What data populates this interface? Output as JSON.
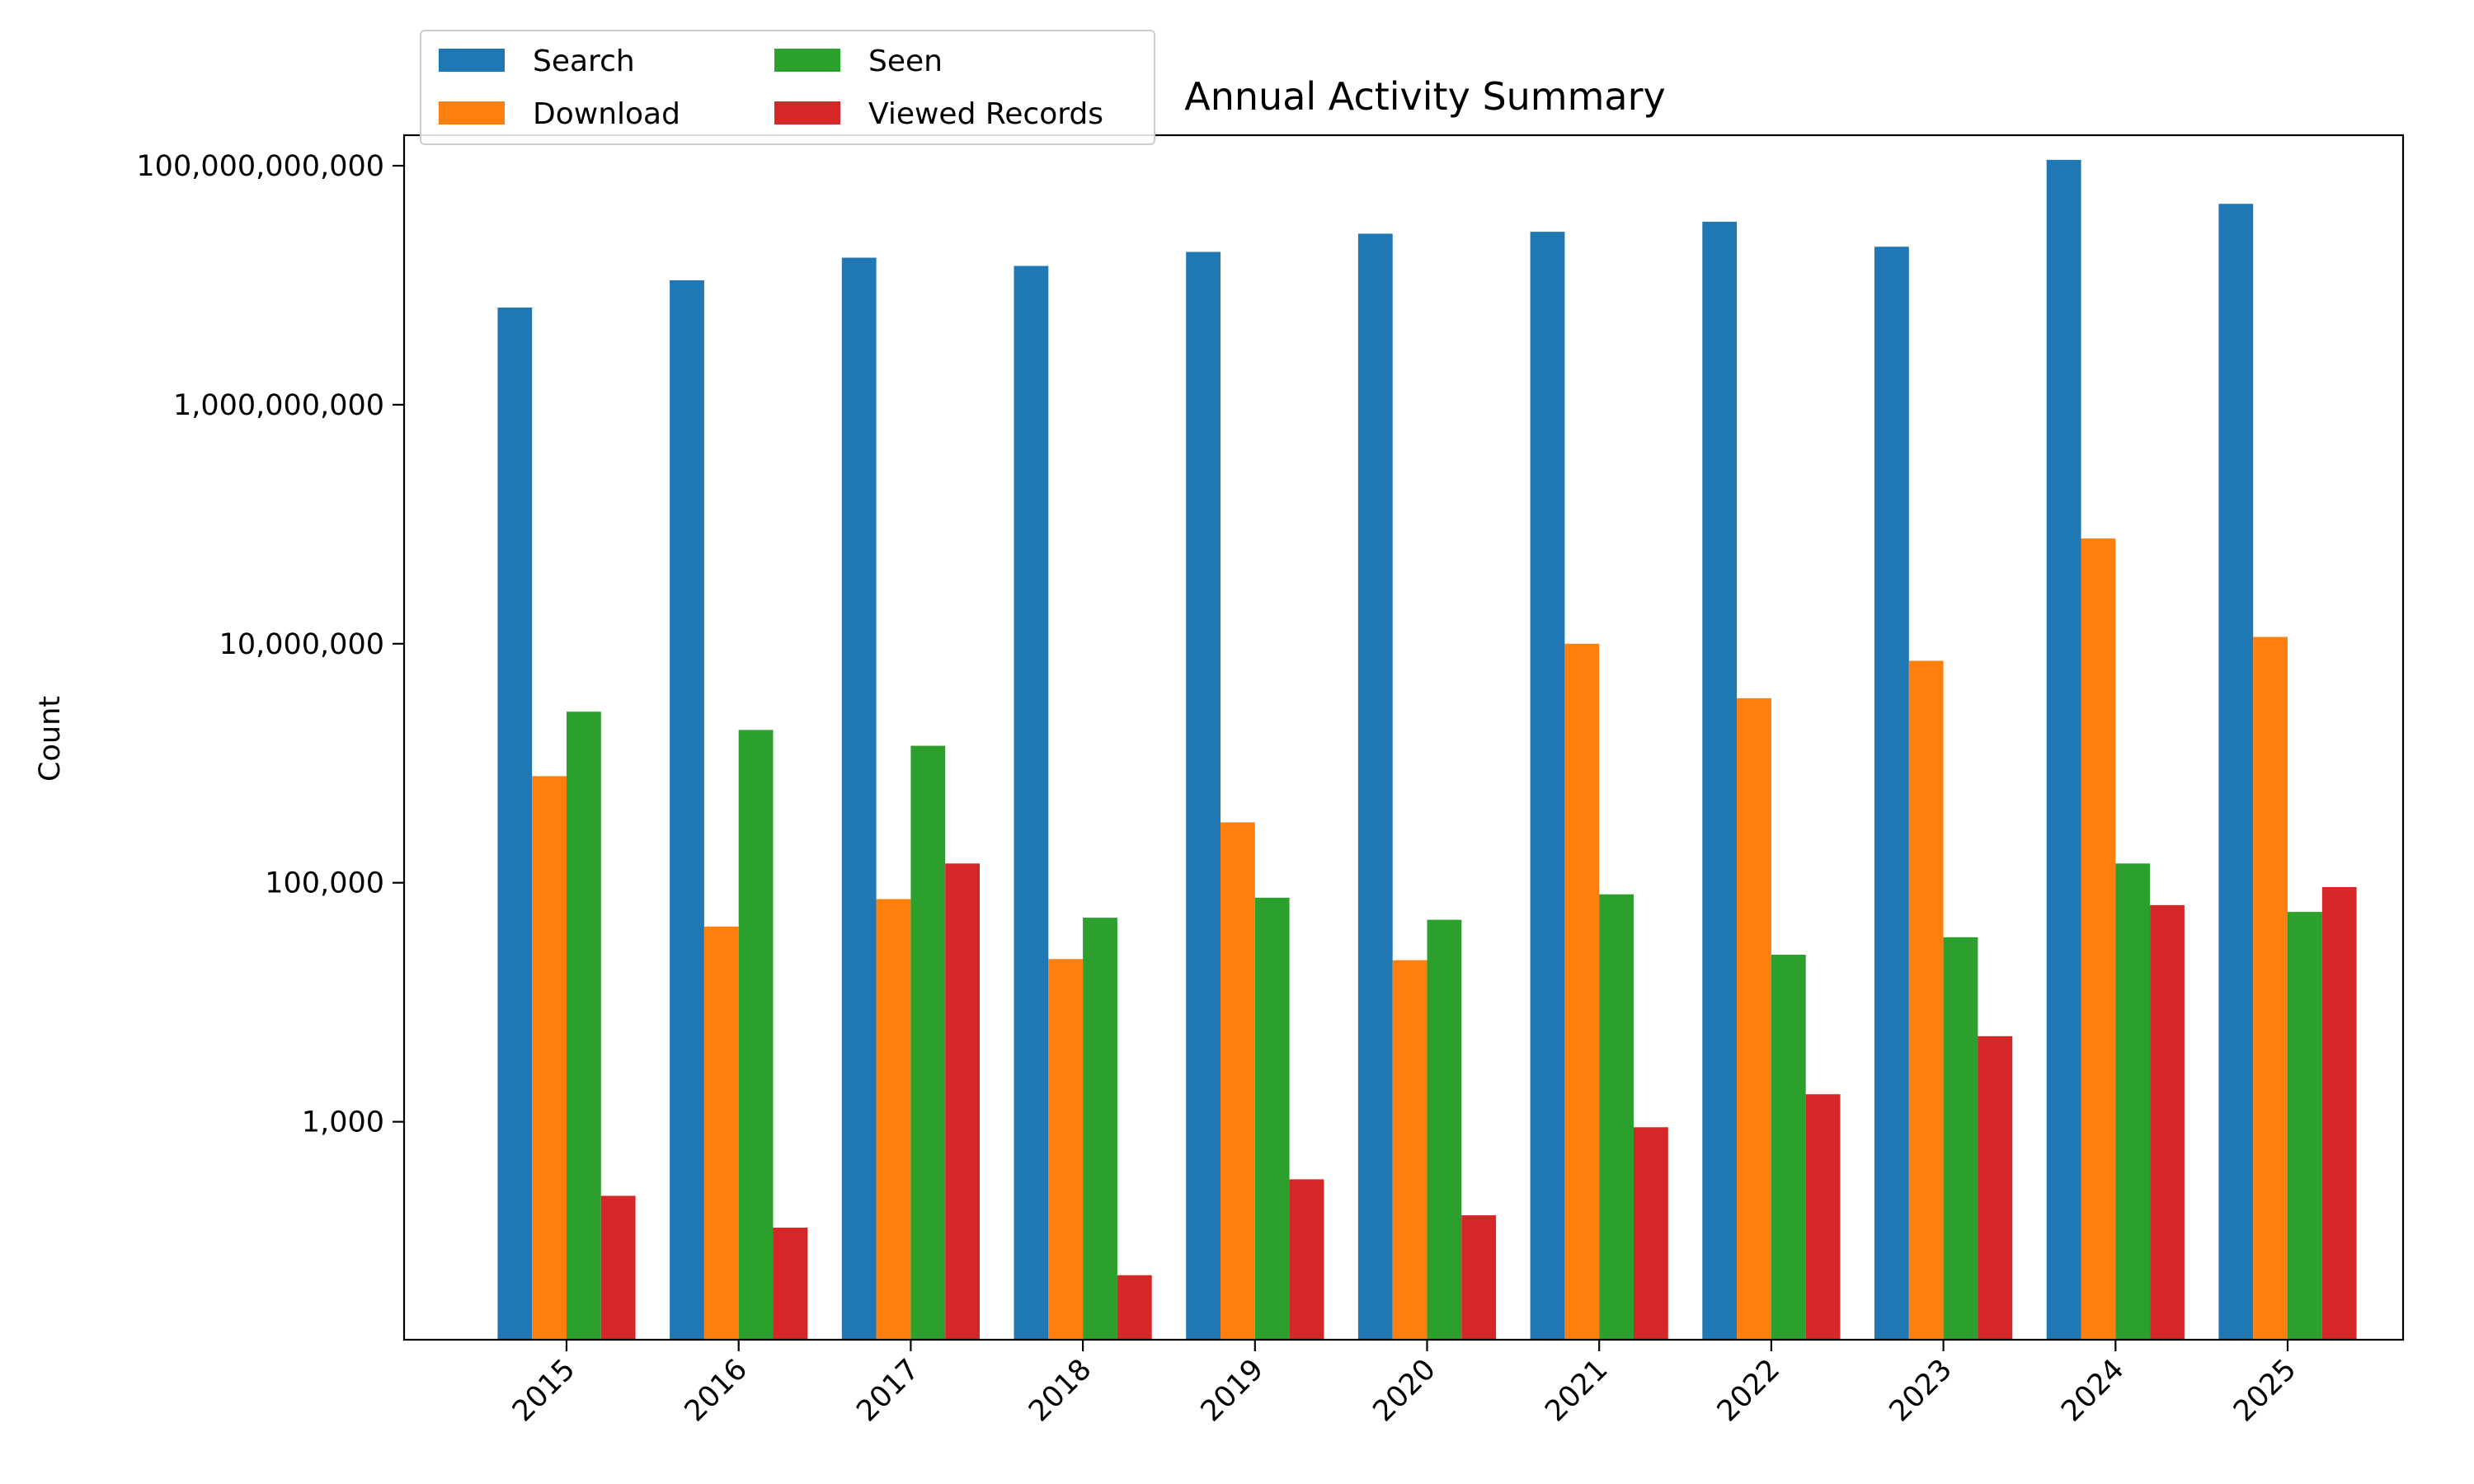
{
  "chart_data": {
    "type": "bar",
    "title": "Annual Activity Summary",
    "xlabel": "",
    "ylabel": "Count",
    "y_scale": "log",
    "ylim": [
      15,
      180000000000
    ],
    "y_ticks": [
      {
        "value": 1000,
        "label": "1,000"
      },
      {
        "value": 100000,
        "label": "100,000"
      },
      {
        "value": 10000000,
        "label": "10,000,000"
      },
      {
        "value": 1000000000,
        "label": "1,000,000,000"
      },
      {
        "value": 100000000000,
        "label": "100,000,000,000"
      }
    ],
    "categories": [
      "2015",
      "2016",
      "2017",
      "2018",
      "2019",
      "2020",
      "2021",
      "2022",
      "2023",
      "2024",
      "2025"
    ],
    "series": [
      {
        "name": "Search",
        "color": "#1f77b4",
        "values": [
          6500000000,
          11000000000,
          17000000000,
          14500000000,
          19000000000,
          27000000000,
          28000000000,
          34000000000,
          21000000000,
          112000000000,
          48000000000
        ]
      },
      {
        "name": "Download",
        "color": "#ff7f0e",
        "values": [
          780000,
          43000,
          73000,
          23000,
          320000,
          22500,
          10000000,
          3500000,
          7200000,
          76000000,
          11400000
        ]
      },
      {
        "name": "Seen",
        "color": "#2ca02c",
        "values": [
          2700000,
          1900000,
          1400000,
          51000,
          75000,
          49000,
          80000,
          25000,
          35000,
          145000,
          57000
        ]
      },
      {
        "name": "Viewed Records",
        "color": "#d62728",
        "values": [
          240,
          130,
          145000,
          52,
          330,
          165,
          900,
          1700,
          5200,
          65000,
          92000
        ]
      }
    ],
    "grid": false,
    "legend": {
      "location": "top-left, above the axes",
      "columns": 2
    }
  }
}
